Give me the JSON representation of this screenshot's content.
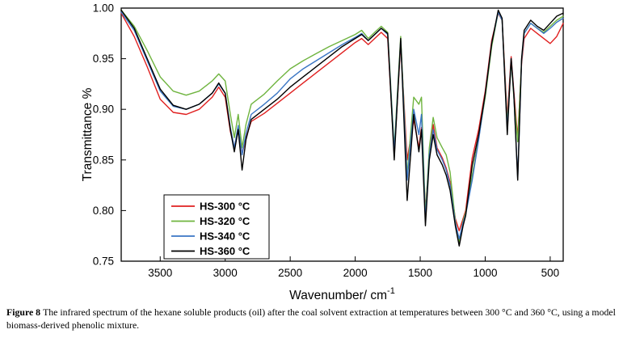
{
  "figure": {
    "caption_label": "Figure 8",
    "caption_text": "The infrared spectrum of the hexane soluble products (oil) after the coal solvent extraction at temperatures between 300 °C and 360 °C, using a model biomass-derived phenolic mixture."
  },
  "chart_data": {
    "type": "line",
    "title": "",
    "xlabel": "Wavenumber/ cm",
    "xlabel_superscript": "-1",
    "ylabel": "Transmittance %",
    "x_reversed": true,
    "xlim": [
      3800,
      400
    ],
    "ylim": [
      0.75,
      1.0
    ],
    "x_ticks": [
      3500,
      3000,
      2500,
      2000,
      1500,
      1000,
      500
    ],
    "y_ticks": [
      0.75,
      0.8,
      0.85,
      0.9,
      0.95,
      1.0
    ],
    "grid": false,
    "legend_position": "lower-left",
    "frame_color": "#000000",
    "x": [
      3800,
      3700,
      3600,
      3500,
      3400,
      3300,
      3200,
      3100,
      3050,
      3000,
      2960,
      2930,
      2900,
      2870,
      2840,
      2800,
      2700,
      2600,
      2500,
      2400,
      2300,
      2200,
      2100,
      2000,
      1950,
      1900,
      1850,
      1800,
      1750,
      1700,
      1650,
      1600,
      1550,
      1510,
      1490,
      1460,
      1430,
      1400,
      1370,
      1330,
      1300,
      1270,
      1230,
      1200,
      1170,
      1150,
      1100,
      1050,
      1000,
      950,
      900,
      870,
      830,
      800,
      780,
      750,
      720,
      700,
      650,
      600,
      550,
      500,
      450,
      400
    ],
    "series": [
      {
        "name": "HS-300 °C",
        "color": "#e02020",
        "values": [
          0.995,
          0.972,
          0.942,
          0.91,
          0.897,
          0.895,
          0.9,
          0.912,
          0.922,
          0.912,
          0.878,
          0.862,
          0.882,
          0.856,
          0.872,
          0.888,
          0.896,
          0.906,
          0.916,
          0.926,
          0.936,
          0.946,
          0.956,
          0.966,
          0.97,
          0.964,
          0.97,
          0.976,
          0.97,
          0.855,
          0.965,
          0.85,
          0.89,
          0.862,
          0.882,
          0.8,
          0.855,
          0.885,
          0.862,
          0.852,
          0.842,
          0.828,
          0.792,
          0.78,
          0.792,
          0.8,
          0.852,
          0.88,
          0.918,
          0.968,
          0.995,
          0.988,
          0.892,
          0.952,
          0.918,
          0.872,
          0.945,
          0.97,
          0.98,
          0.975,
          0.97,
          0.965,
          0.972,
          0.985
        ]
      },
      {
        "name": "HS-320 °C",
        "color": "#6fb43f",
        "values": [
          0.998,
          0.982,
          0.958,
          0.932,
          0.918,
          0.914,
          0.918,
          0.928,
          0.935,
          0.928,
          0.895,
          0.872,
          0.895,
          0.862,
          0.885,
          0.905,
          0.915,
          0.928,
          0.94,
          0.948,
          0.955,
          0.962,
          0.968,
          0.974,
          0.978,
          0.97,
          0.976,
          0.982,
          0.976,
          0.862,
          0.972,
          0.835,
          0.912,
          0.905,
          0.912,
          0.795,
          0.862,
          0.892,
          0.872,
          0.862,
          0.855,
          0.838,
          0.79,
          0.768,
          0.79,
          0.798,
          0.835,
          0.872,
          0.912,
          0.962,
          0.996,
          0.988,
          0.885,
          0.948,
          0.912,
          0.868,
          0.948,
          0.975,
          0.985,
          0.98,
          0.976,
          0.982,
          0.988,
          0.992
        ]
      },
      {
        "name": "HS-340 °C",
        "color": "#3a75c4",
        "values": [
          0.996,
          0.978,
          0.948,
          0.918,
          0.903,
          0.9,
          0.905,
          0.916,
          0.925,
          0.916,
          0.882,
          0.862,
          0.884,
          0.855,
          0.876,
          0.895,
          0.905,
          0.916,
          0.93,
          0.94,
          0.948,
          0.956,
          0.964,
          0.971,
          0.975,
          0.968,
          0.974,
          0.98,
          0.974,
          0.858,
          0.968,
          0.83,
          0.9,
          0.875,
          0.895,
          0.79,
          0.855,
          0.88,
          0.86,
          0.85,
          0.84,
          0.825,
          0.788,
          0.772,
          0.788,
          0.796,
          0.83,
          0.87,
          0.915,
          0.965,
          0.996,
          0.988,
          0.88,
          0.95,
          0.915,
          0.832,
          0.948,
          0.975,
          0.985,
          0.98,
          0.975,
          0.98,
          0.986,
          0.99
        ]
      },
      {
        "name": "HS-360 °C",
        "color": "#000000",
        "values": [
          0.998,
          0.98,
          0.95,
          0.92,
          0.904,
          0.9,
          0.905,
          0.916,
          0.926,
          0.916,
          0.88,
          0.858,
          0.88,
          0.84,
          0.87,
          0.89,
          0.9,
          0.91,
          0.922,
          0.932,
          0.942,
          0.952,
          0.962,
          0.97,
          0.974,
          0.968,
          0.974,
          0.98,
          0.975,
          0.85,
          0.97,
          0.81,
          0.895,
          0.858,
          0.88,
          0.785,
          0.85,
          0.875,
          0.855,
          0.845,
          0.835,
          0.82,
          0.785,
          0.765,
          0.785,
          0.795,
          0.845,
          0.875,
          0.915,
          0.965,
          0.998,
          0.99,
          0.875,
          0.95,
          0.915,
          0.83,
          0.95,
          0.978,
          0.988,
          0.982,
          0.978,
          0.985,
          0.992,
          0.995
        ]
      }
    ]
  }
}
